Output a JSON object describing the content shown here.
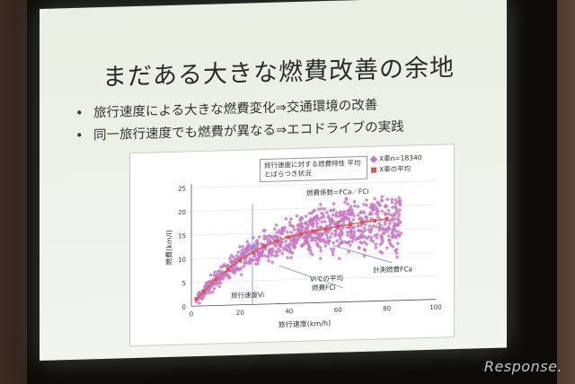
{
  "slide": {
    "title": "まだある大きな燃費改善の余地",
    "bullets": [
      "旅行速度による大きな燃費変化⇒交通環境の改善",
      "同一旅行速度でも燃費が異なる⇒エコドライブの実践"
    ]
  },
  "chart_data": {
    "type": "scatter",
    "title": "旅行速度に対する燃費特性 平均とばらつき状況",
    "xlabel": "旅行速度(km/h)",
    "ylabel": "燃費(km/l)",
    "xlim": [
      0,
      100
    ],
    "ylim": [
      0,
      25
    ],
    "xticks": [
      0,
      20,
      40,
      60,
      80,
      100
    ],
    "yticks": [
      0,
      5,
      10,
      15,
      20,
      25
    ],
    "legend": [
      {
        "label": "X車n=18340",
        "color": "#c879c4"
      },
      {
        "label": "X車の平均",
        "color": "#d9534f"
      }
    ],
    "annotations": {
      "envelope": "燃費係数=FCa／FCi",
      "measured": "計測燃費FCa",
      "average": "Viでの平均",
      "average2": "燃費FCi",
      "speed": "旅行速度Vi"
    },
    "series": [
      {
        "name": "X車の平均",
        "x": [
          2,
          5,
          10,
          15,
          20,
          25,
          30,
          35,
          40,
          45,
          50,
          55,
          60,
          65,
          70,
          75,
          80
        ],
        "y": [
          1.5,
          3.0,
          5.5,
          7.5,
          9.5,
          11.0,
          12.3,
          13.3,
          14.0,
          14.6,
          15.1,
          15.5,
          15.9,
          16.3,
          16.7,
          17.0,
          17.3
        ]
      }
    ],
    "scatter_color": "#c879c4",
    "mean_color": "#d9534f"
  },
  "watermark": "Response."
}
